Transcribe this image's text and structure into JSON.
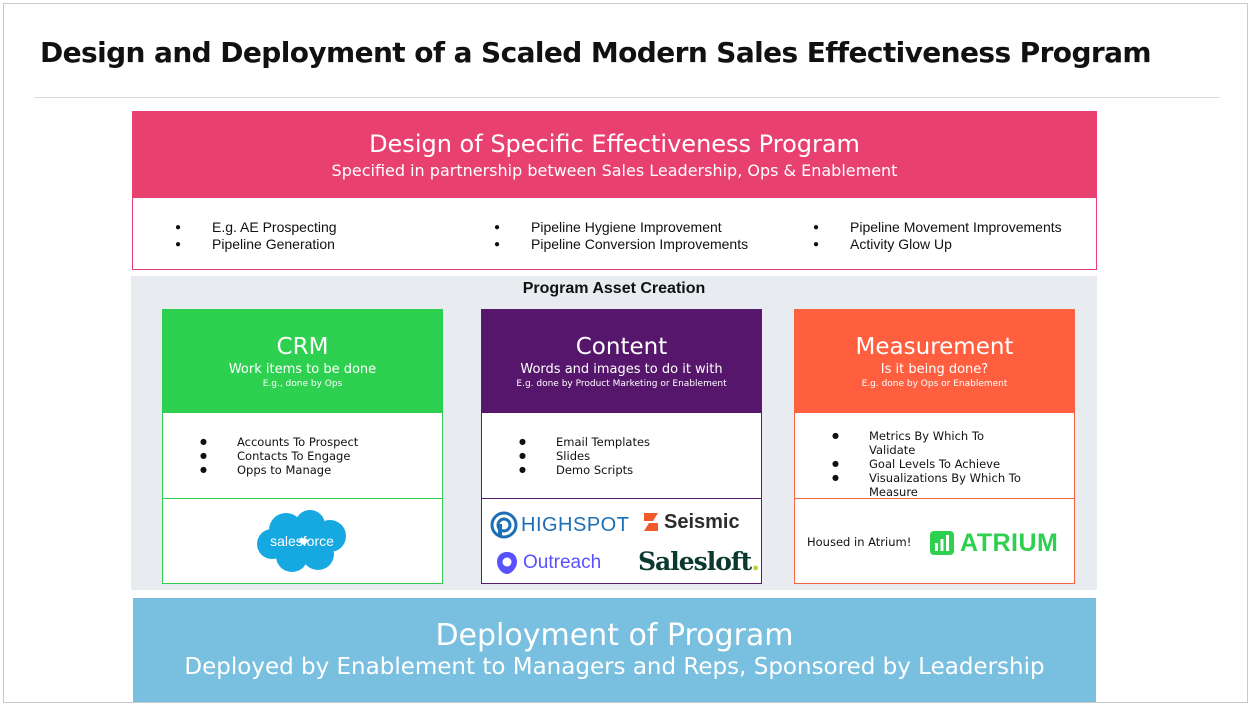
{
  "page_title": "Design and Deployment of a Scaled Modern Sales Effectiveness Program",
  "design": {
    "title": "Design of Specific Effectiveness Program",
    "subtitle": "Specified in partnership between Sales Leadership, Ops & Enablement",
    "columns": [
      [
        "E.g. AE Prospecting",
        "Pipeline Generation"
      ],
      [
        "Pipeline Hygiene Improvement",
        "Pipeline Conversion Improvements"
      ],
      [
        "Pipeline Movement Improvements",
        "Activity Glow Up"
      ]
    ]
  },
  "assets": {
    "title": "Program Asset Creation",
    "crm": {
      "title": "CRM",
      "subtitle": "Work items to be done",
      "note": "E.g., done by Ops",
      "items": [
        "Accounts To Prospect",
        "Contacts To Engage",
        "Opps to Manage"
      ],
      "logo": "salesforce"
    },
    "content": {
      "title": "Content",
      "subtitle": "Words and images to do it with",
      "note": "E.g. done by Product Marketing or Enablement",
      "items": [
        "Email Templates",
        "Slides",
        "Demo Scripts"
      ],
      "logos": [
        "HIGHSPOT",
        "Seismic",
        "Outreach",
        "Salesloft",
        "."
      ]
    },
    "measurement": {
      "title": "Measurement",
      "subtitle": "Is it being done?",
      "note": "E.g. done by Ops or Enablement",
      "items": [
        "Metrics By Which To Validate",
        "Goal Levels To Achieve",
        "Visualizations By Which To Measure"
      ],
      "housed_text": "Housed in Atrium!",
      "logo": "ATRIUM"
    }
  },
  "deployment": {
    "title": "Deployment of Program",
    "subtitle": "Deployed by Enablement to Managers and Reps, Sponsored by Leadership"
  },
  "colors": {
    "design": "#e8416f",
    "crm": "#2ed14f",
    "content": "#56166b",
    "measurement": "#ff5f3f",
    "deployment": "#79bfdf",
    "assets_bg": "#e8ecf1"
  }
}
